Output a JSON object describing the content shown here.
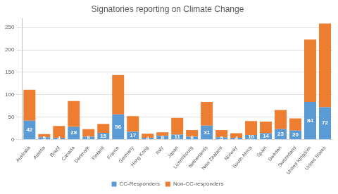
{
  "chart_data": {
    "type": "bar",
    "title": "Signatories reporting on Climate Change",
    "categories": [
      "Australia",
      "Austria",
      "Brazil",
      "Canada",
      "Denmark",
      "Finland",
      "France",
      "Germany",
      "Hong Kong",
      "Italy",
      "Japan",
      "Luxembourg",
      "Netherlands",
      "New Zealand",
      "Norway",
      "South Africa",
      "Spain",
      "Sweden",
      "Switzerland",
      "United Kingdom",
      "United States"
    ],
    "series": [
      {
        "name": "CC-Responders",
        "color": "#5b9bd5",
        "data_labels": true,
        "values": [
          42,
          5,
          4,
          28,
          6,
          15,
          56,
          17,
          4,
          8,
          11,
          6,
          31,
          5,
          4,
          10,
          14,
          23,
          20,
          84,
          72
        ]
      },
      {
        "name": "Non-CC-responders",
        "color": "#ed7d31",
        "values": [
          69,
          7,
          26,
          58,
          17,
          20,
          88,
          35,
          9,
          8,
          37,
          15,
          53,
          16,
          10,
          31,
          26,
          43,
          27,
          139,
          187
        ]
      }
    ],
    "stacked": true,
    "ylim": [
      0,
      270
    ],
    "yticks": [
      0,
      50,
      100,
      150,
      200,
      250
    ],
    "grid": true,
    "legend": "bottom"
  }
}
